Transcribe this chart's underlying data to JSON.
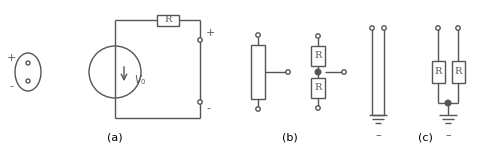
{
  "figsize": [
    5.0,
    1.49
  ],
  "dpi": 100,
  "bg_color": "#ffffff",
  "line_color": "#555555",
  "lw": 1.0,
  "label_a": "(a)",
  "label_b": "(b)",
  "label_c": "(c)"
}
